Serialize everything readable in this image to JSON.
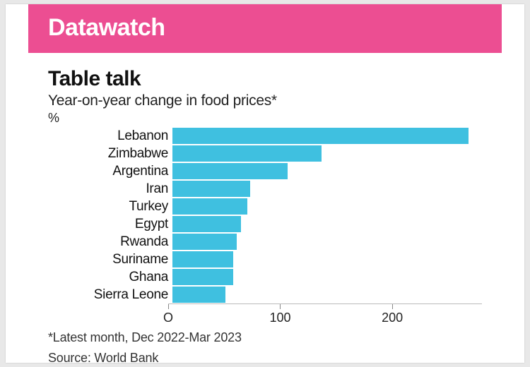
{
  "banner": {
    "label": "Datawatch",
    "bg": "#ec4e92",
    "fg": "#ffffff"
  },
  "chart": {
    "type": "bar-horizontal",
    "title": "Table talk",
    "subtitle": "Year-on-year change in food prices*",
    "unit": "%",
    "bar_color": "#3fc0e0",
    "background_color": "#ffffff",
    "xlim": [
      0,
      280
    ],
    "xticks": [
      0,
      100,
      200
    ],
    "categories": [
      "Lebanon",
      "Zimbabwe",
      "Argentina",
      "Iran",
      "Turkey",
      "Egypt",
      "Rwanda",
      "Suriname",
      "Ghana",
      "Sierra Leone"
    ],
    "values": [
      268,
      135,
      104,
      70,
      68,
      62,
      58,
      55,
      55,
      48
    ],
    "label_fontsize": 19,
    "tick_fontsize": 18,
    "title_fontsize": 30,
    "subtitle_fontsize": 21
  },
  "footnote1": "*Latest month, Dec 2022-Mar 2023",
  "footnote2": "Source: World Bank"
}
